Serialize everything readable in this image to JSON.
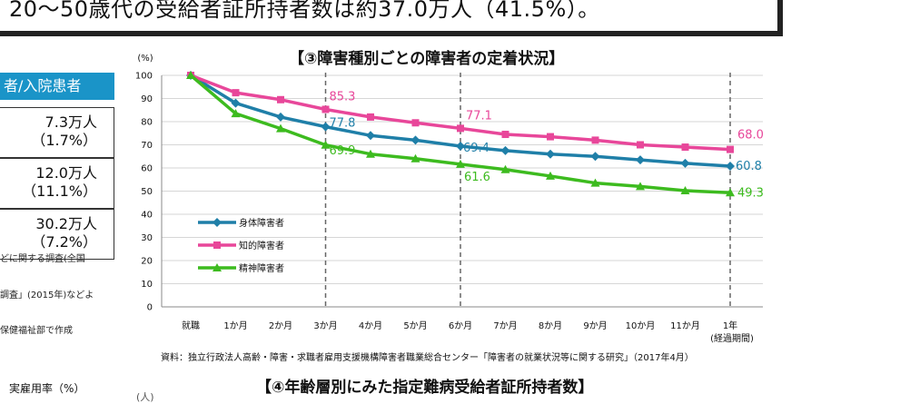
{
  "banner": {
    "text": "20〜50歳代の受給者証所持者数は約37.0万人（41.5%）。"
  },
  "left_table": {
    "header": "者/入院患者",
    "rows": [
      {
        "value": "7.3万人",
        "pct": "（1.7%）"
      },
      {
        "value": "12.0万人",
        "pct": "（11.1%）"
      },
      {
        "value": "30.2万人",
        "pct": "（7.2%）"
      }
    ],
    "notes": [
      "どに関する調査(全国",
      "調査」(2015年)などよ",
      "保健福祉部で作成"
    ],
    "rate_label": "実雇用率（%）"
  },
  "chart_data": {
    "type": "line",
    "title": "【③障害種別ごとの障害者の定着状況】",
    "ylabel": "(%)",
    "xlabel": "(経過期間)",
    "ylim": [
      0,
      100
    ],
    "yticks": [
      0,
      10,
      20,
      30,
      40,
      50,
      60,
      70,
      80,
      90,
      100
    ],
    "categories": [
      "就職",
      "1か月",
      "2か月",
      "3か月",
      "4か月",
      "5か月",
      "6か月",
      "7か月",
      "8か月",
      "9か月",
      "10か月",
      "11か月",
      "1年"
    ],
    "grid": true,
    "legend_position": "lower-left",
    "markers_at": [
      "3か月",
      "6か月",
      "1年"
    ],
    "series": [
      {
        "name": "身体障害者",
        "color": "#1f7fa8",
        "values": [
          100,
          88,
          82,
          77.8,
          74,
          72,
          69.4,
          67.5,
          66,
          65,
          63.5,
          62,
          60.8
        ],
        "labels": [
          {
            "i": 3,
            "text": "77.8"
          },
          {
            "i": 6,
            "text": "69.4"
          },
          {
            "i": 12,
            "text": "60.8"
          }
        ]
      },
      {
        "name": "知的障害者",
        "color": "#e8479a",
        "values": [
          100,
          92.5,
          89.5,
          85.3,
          82,
          79.5,
          77.1,
          74.5,
          73.5,
          72,
          70,
          69,
          68.0
        ],
        "labels": [
          {
            "i": 3,
            "text": "85.3"
          },
          {
            "i": 6,
            "text": "77.1"
          },
          {
            "i": 12,
            "text": "68.0"
          }
        ]
      },
      {
        "name": "精神障害者",
        "color": "#3dbb1f",
        "values": [
          100,
          83.5,
          77,
          69.9,
          66,
          64,
          61.6,
          59.3,
          56.5,
          53.5,
          52,
          50.2,
          49.3
        ],
        "labels": [
          {
            "i": 3,
            "text": "69.9"
          },
          {
            "i": 6,
            "text": "61.6"
          },
          {
            "i": 12,
            "text": "49.3"
          }
        ]
      }
    ],
    "year_label": "1年"
  },
  "source": "資料：独立行政法人高齢・障害・求職者雇用支援機構障害者職業総合センター「障害者の就業状況等に関する研究」（2017年4月）",
  "title2": "【④年齢層別にみた指定難病受給者証所持者数】",
  "unit2": "(人)"
}
